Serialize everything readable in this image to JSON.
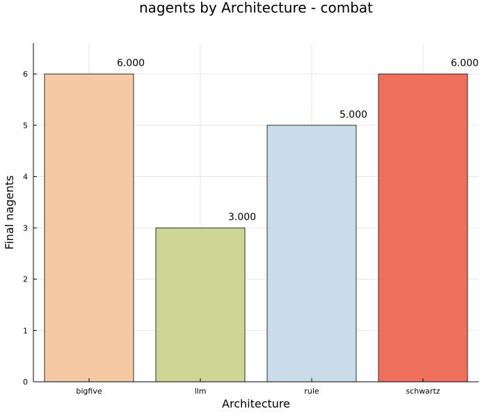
{
  "chart_data": {
    "type": "bar",
    "title": "nagents by Architecture - combat",
    "xlabel": "Architecture",
    "ylabel": "Final nagents",
    "categories": [
      "bigfive",
      "llm",
      "rule",
      "schwartz"
    ],
    "values": [
      6,
      3,
      5,
      6
    ],
    "value_labels": [
      "6.000",
      "3.000",
      "5.000",
      "6.000"
    ],
    "colors": [
      "#f4c9a4",
      "#cfd594",
      "#c9dcea",
      "#ee705d"
    ],
    "ylim": [
      0,
      6.6
    ],
    "yticks": [
      0,
      1,
      2,
      3,
      4,
      5,
      6
    ],
    "grid": true,
    "legend": "none"
  }
}
